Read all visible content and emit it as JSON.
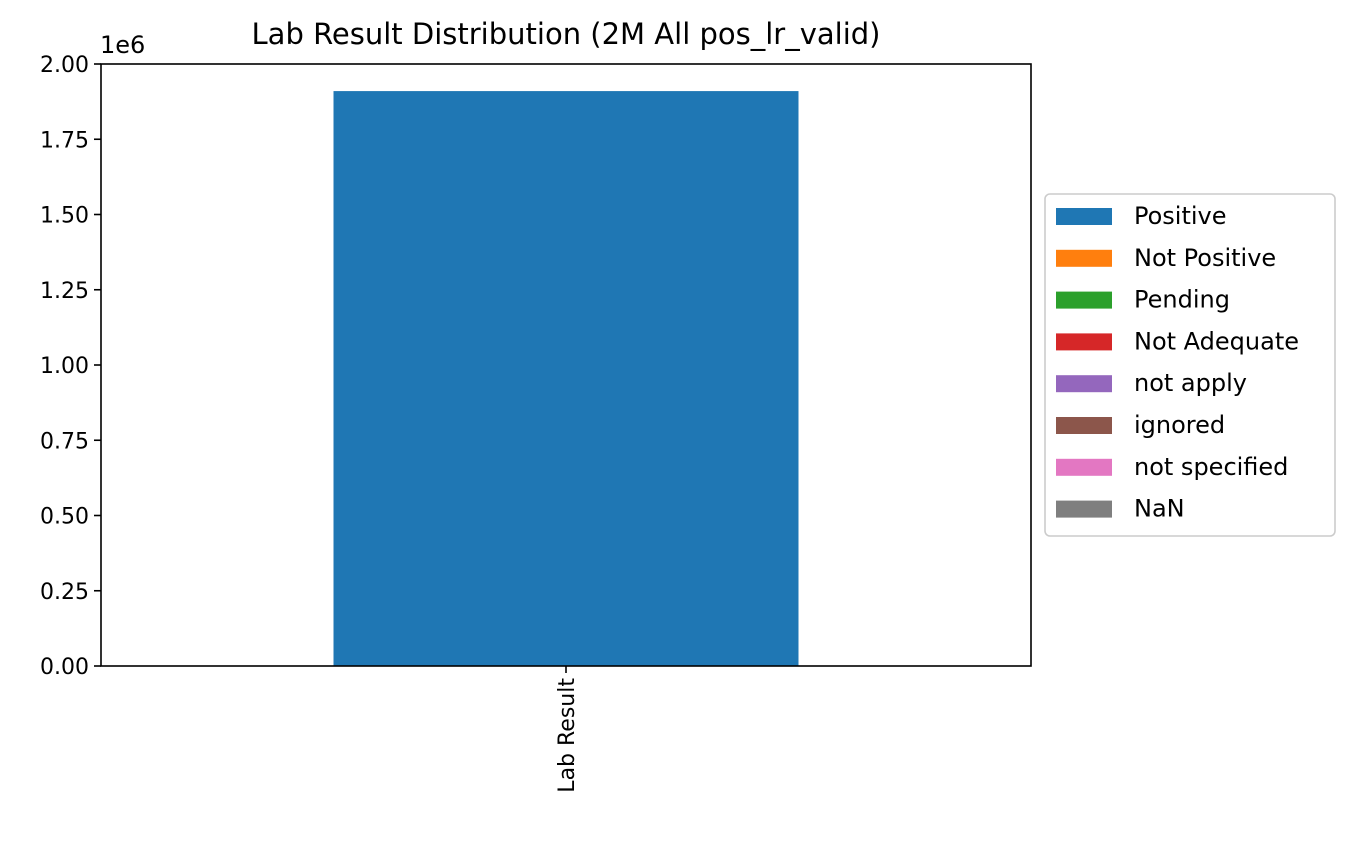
{
  "chart_data": {
    "type": "bar",
    "stacked": true,
    "title": "Lab Result Distribution (2M All pos_lr_valid)",
    "xlabel": "",
    "ylabel": "",
    "categories": [
      "Lab Result"
    ],
    "category_label_rotation": "vertical",
    "y_offset_label": "1e6",
    "ylim": [
      0,
      2.0
    ],
    "y_ticks": [
      "0.00",
      "0.25",
      "0.50",
      "0.75",
      "1.00",
      "1.25",
      "1.50",
      "1.75",
      "2.00"
    ],
    "series": [
      {
        "name": "Positive",
        "values": [
          1.91
        ],
        "color": "#1f77b4"
      },
      {
        "name": "Not Positive",
        "values": [
          0
        ],
        "color": "#ff7f0e"
      },
      {
        "name": "Pending",
        "values": [
          0
        ],
        "color": "#2ca02c"
      },
      {
        "name": "Not Adequate",
        "values": [
          0
        ],
        "color": "#d62728"
      },
      {
        "name": "not apply",
        "values": [
          0
        ],
        "color": "#9467bd"
      },
      {
        "name": "ignored",
        "values": [
          0
        ],
        "color": "#8c564b"
      },
      {
        "name": "not specified",
        "values": [
          0
        ],
        "color": "#e377c2"
      },
      {
        "name": "NaN",
        "values": [
          0
        ],
        "color": "#7f7f7f"
      }
    ],
    "grid": false,
    "legend_position": "center-right outside"
  }
}
